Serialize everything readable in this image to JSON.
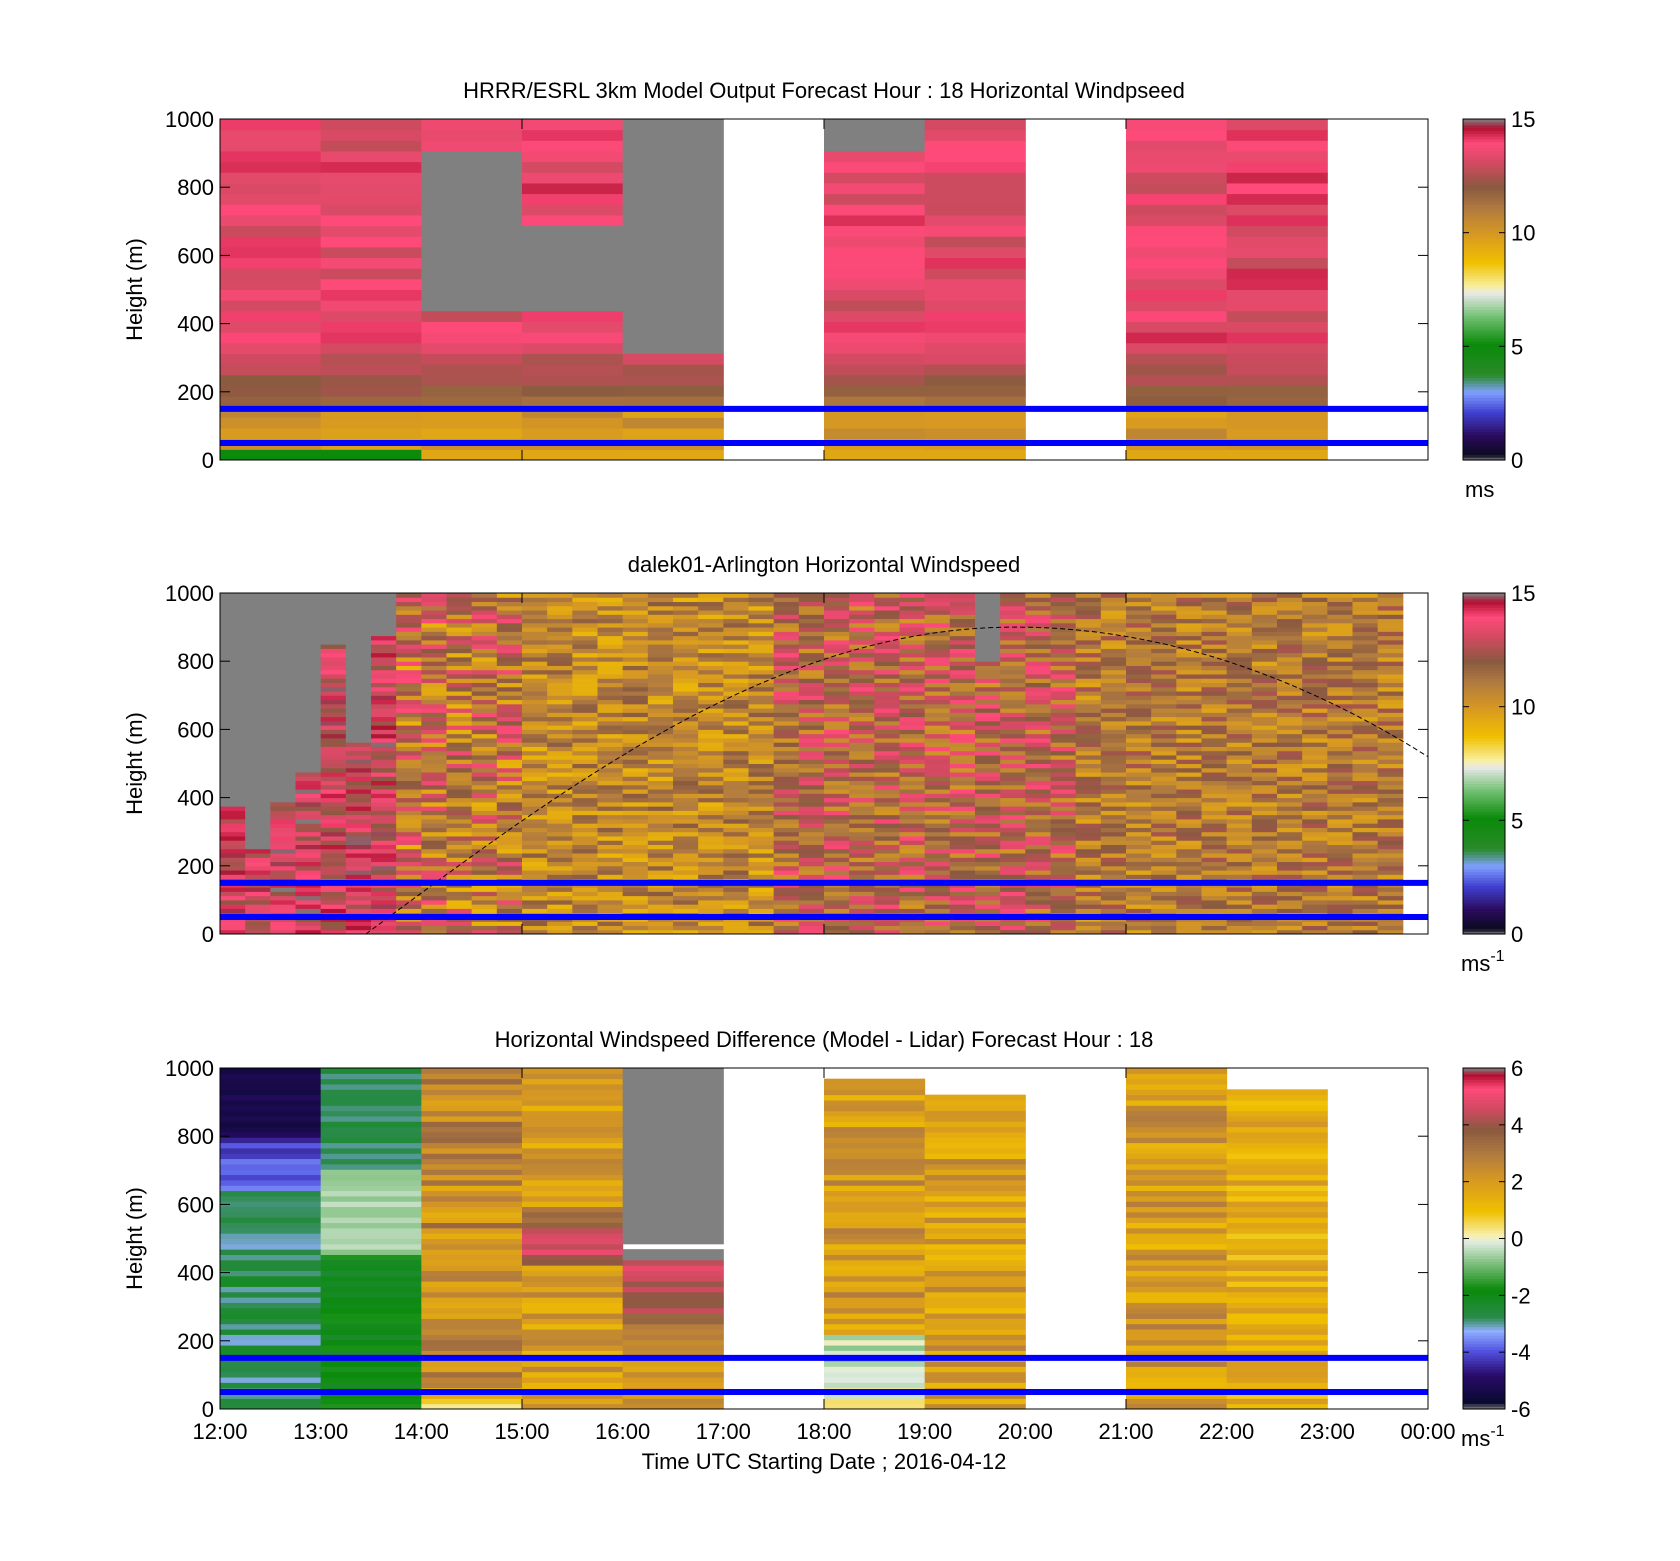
{
  "figure": {
    "xlabel": "Time UTC  Starting Date ; 2016-04-12",
    "x_tick_labels": [
      "12:00",
      "13:00",
      "14:00",
      "15:00",
      "16:00",
      "17:00",
      "18:00",
      "19:00",
      "20:00",
      "21:00",
      "22:00",
      "23:00",
      "00:00"
    ],
    "reference_lines_m": [
      50,
      150
    ],
    "reference_line_color": "#0000ff"
  },
  "chart_data": [
    {
      "type": "heatmap",
      "title": "HRRR/ESRL 3km Model Output   Forecast Hour : 18 Horizontal Windpseed",
      "ylabel": "Height (m)",
      "ylim": [
        0,
        1000
      ],
      "y_ticks": [
        "0",
        "200",
        "400",
        "600",
        "800",
        "1000"
      ],
      "xlim": [
        "12:00",
        "00:00"
      ],
      "colorbar": {
        "range": [
          0,
          15
        ],
        "ticks": [
          "0",
          "5",
          "10",
          "15"
        ],
        "unit": "ms",
        "unit_sup": ""
      },
      "hour_columns_missing": [
        "17:00",
        "20:00",
        "23:00"
      ],
      "hour_columns_fully_gray": [],
      "gray_regions": [
        {
          "hour": "14:00",
          "from_m": 450,
          "to_m": 900
        },
        {
          "hour": "15:00",
          "from_m": 450,
          "to_m": 700
        },
        {
          "hour": "16:00",
          "from_m": 300,
          "to_m": 1000
        },
        {
          "hour": "18:00",
          "from_m": 900,
          "to_m": 1000
        }
      ]
    },
    {
      "type": "heatmap",
      "title": "dalek01-Arlington  Horizontal Windspeed",
      "ylabel": "Height (m)",
      "ylim": [
        0,
        1000
      ],
      "y_ticks": [
        "0",
        "200",
        "400",
        "600",
        "800",
        "1000"
      ],
      "xlim": [
        "12:00",
        "00:00"
      ],
      "colorbar": {
        "range": [
          0,
          15
        ],
        "ticks": [
          "0",
          "5",
          "10",
          "15"
        ],
        "unit": "ms",
        "unit_sup": "-1"
      },
      "dashed_curve": "boundary-layer height estimate rising from ~0 m at 13:30 to ~900 m near 20:00 and ~520 m at 00:00"
    },
    {
      "type": "heatmap",
      "title": "Horizontal Windspeed Difference (Model - Lidar) Forecast Hour : 18",
      "ylabel": "Height (m)",
      "ylim": [
        0,
        1000
      ],
      "y_ticks": [
        "0",
        "200",
        "400",
        "600",
        "800",
        "1000"
      ],
      "xlim": [
        "12:00",
        "00:00"
      ],
      "colorbar": {
        "range": [
          -6,
          6
        ],
        "ticks": [
          "-6",
          "-4",
          "-2",
          "0",
          "2",
          "4",
          "6"
        ],
        "unit": "ms",
        "unit_sup": "-1"
      },
      "hour_columns_missing": [
        "17:00",
        "20:00",
        "23:00"
      ]
    }
  ]
}
